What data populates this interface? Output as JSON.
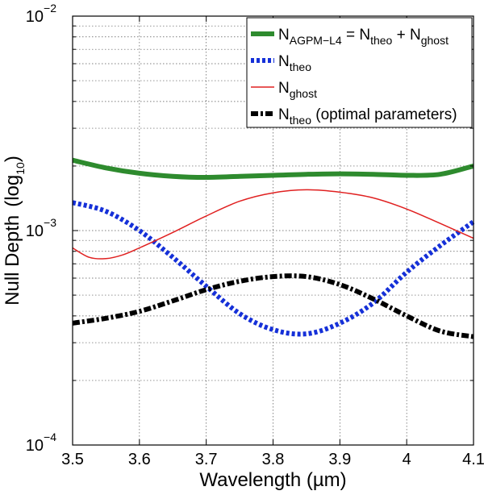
{
  "chart_data": {
    "type": "line",
    "xlabel": "Wavelength (µm)",
    "ylabel": "Null Depth",
    "ylabel_unit": "log",
    "ylabel_unit_sub": "10",
    "xlim": [
      3.5,
      4.1
    ],
    "ylim": [
      0.0001,
      0.01
    ],
    "yscale": "log",
    "grid": true,
    "legend_position": "top-right",
    "x_ticks": [
      3.5,
      3.6,
      3.7,
      3.8,
      3.9,
      4.0,
      4.1
    ],
    "x_tick_labels": [
      "3.5",
      "3.6",
      "3.7",
      "3.8",
      "3.9",
      "4",
      "4.1"
    ],
    "y_ticks": [
      {
        "value": 0.0001,
        "base": "10",
        "exp": "−4"
      },
      {
        "value": 0.001,
        "base": "10",
        "exp": "−3"
      },
      {
        "value": 0.01,
        "base": "10",
        "exp": "−2"
      }
    ],
    "series": [
      {
        "id": "agpm",
        "legend": {
          "main": "N",
          "sub": "AGPM−L4",
          "rest": " = N",
          "sub2": "theo",
          "rest2": " + N",
          "sub3": "ghost"
        },
        "color": "#2e8b2e",
        "style": "solid",
        "x": [
          3.5,
          3.55,
          3.6,
          3.65,
          3.7,
          3.75,
          3.8,
          3.85,
          3.9,
          3.95,
          4.0,
          4.05,
          4.1
        ],
        "y": [
          0.00213,
          0.00196,
          0.00185,
          0.00179,
          0.00177,
          0.00179,
          0.00181,
          0.00183,
          0.00184,
          0.00183,
          0.00181,
          0.00183,
          0.002
        ]
      },
      {
        "id": "theo",
        "legend": {
          "main": "N",
          "sub": "theo"
        },
        "color": "#1530d8",
        "style": "dotted",
        "x": [
          3.5,
          3.55,
          3.6,
          3.65,
          3.7,
          3.75,
          3.8,
          3.85,
          3.9,
          3.95,
          4.0,
          4.05,
          4.1
        ],
        "y": [
          0.00135,
          0.00123,
          0.001,
          0.00075,
          0.00055,
          0.00041,
          0.000345,
          0.00033,
          0.00037,
          0.00046,
          0.00064,
          0.00085,
          0.0011
        ]
      },
      {
        "id": "ghost",
        "legend": {
          "main": "N",
          "sub": "ghost"
        },
        "color": "#e02020",
        "style": "solid-thin",
        "x": [
          3.5,
          3.525,
          3.55,
          3.575,
          3.6,
          3.65,
          3.7,
          3.75,
          3.8,
          3.85,
          3.9,
          3.95,
          4.0,
          4.05,
          4.1
        ],
        "y": [
          0.00083,
          0.00075,
          0.00074,
          0.00077,
          0.00083,
          0.00098,
          0.00117,
          0.00137,
          0.0015,
          0.00155,
          0.00151,
          0.00142,
          0.00126,
          0.00108,
          0.00092
        ]
      },
      {
        "id": "optimal",
        "legend": {
          "main": "N",
          "sub": "theo",
          "rest": " (optimal parameters)"
        },
        "color": "#000000",
        "style": "dashdot",
        "x": [
          3.5,
          3.55,
          3.6,
          3.65,
          3.7,
          3.75,
          3.8,
          3.85,
          3.9,
          3.95,
          4.0,
          4.05,
          4.1
        ],
        "y": [
          0.00037,
          0.00039,
          0.00042,
          0.00047,
          0.00053,
          0.00058,
          0.00061,
          0.00061,
          0.00056,
          0.00048,
          0.0004,
          0.00034,
          0.00032
        ]
      }
    ]
  }
}
